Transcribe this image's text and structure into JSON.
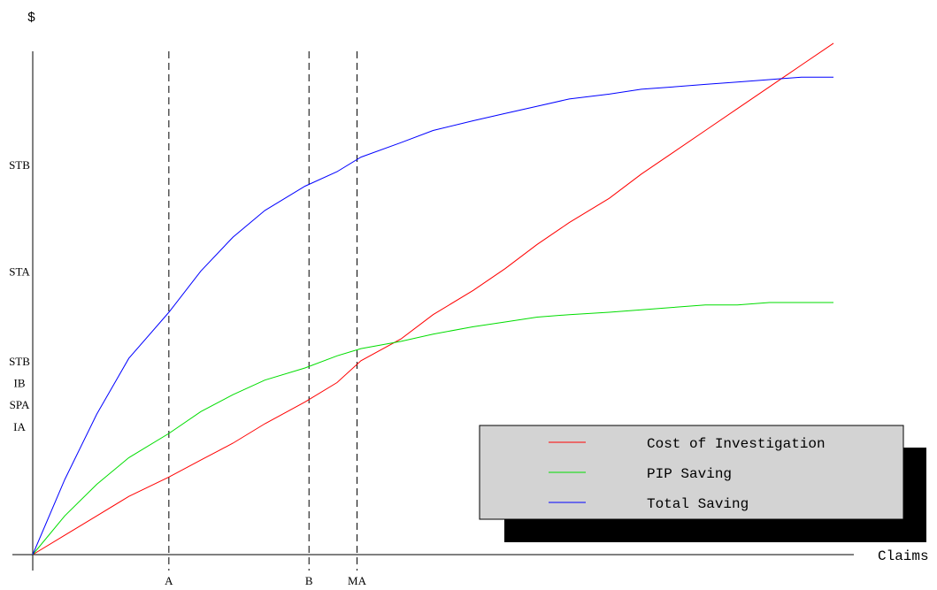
{
  "chart_data": {
    "type": "line",
    "title": "",
    "xlabel": "Claims",
    "ylabel": "$",
    "xlim": [
      0,
      100
    ],
    "ylim": [
      0,
      100
    ],
    "grid": false,
    "legend_position": "bottom-right",
    "x": [
      0,
      4,
      8,
      12,
      17,
      21,
      25,
      29,
      34,
      38,
      41,
      46,
      50,
      55,
      59,
      63,
      67,
      72,
      76,
      80,
      84,
      88,
      92,
      96,
      100
    ],
    "series": [
      {
        "name": "Cost of Investigation",
        "color": "#ff0000",
        "values": [
          0,
          4,
          8,
          12,
          16,
          19.5,
          23,
          27,
          31.5,
          35.5,
          40,
          44.5,
          49.5,
          54.5,
          59,
          64,
          68.5,
          73.5,
          78.5,
          83,
          87.5,
          92,
          96.5,
          101,
          105.5
        ]
      },
      {
        "name": "PIP Saving",
        "color": "#00dd00",
        "values": [
          0,
          8,
          14.5,
          20,
          25,
          29.5,
          33,
          36,
          38.5,
          41,
          42.5,
          44,
          45.5,
          47,
          48,
          49,
          49.5,
          50,
          50.5,
          51,
          51.5,
          51.5,
          52,
          52,
          52
        ]
      },
      {
        "name": "Total Saving",
        "color": "#0000ff",
        "values": [
          0,
          15.5,
          29,
          40.5,
          50,
          58.5,
          65.5,
          71,
          76,
          79,
          82,
          85,
          87.5,
          89.5,
          91,
          92.5,
          94,
          95,
          96,
          96.5,
          97,
          97.5,
          98,
          98.5,
          98.5
        ]
      }
    ],
    "x_markers": [
      {
        "label": "A",
        "x": 17
      },
      {
        "label": "B",
        "x": 34.5
      },
      {
        "label": "MA",
        "x": 40.5
      }
    ],
    "y_markers": [
      {
        "label": "STB",
        "y": 80.5
      },
      {
        "label": "STA",
        "y": 58.5
      },
      {
        "label": "STB",
        "y": 40
      },
      {
        "label": "IB",
        "y": 35.5
      },
      {
        "label": "SPA",
        "y": 31
      },
      {
        "label": "IA",
        "y": 26.5
      }
    ]
  }
}
